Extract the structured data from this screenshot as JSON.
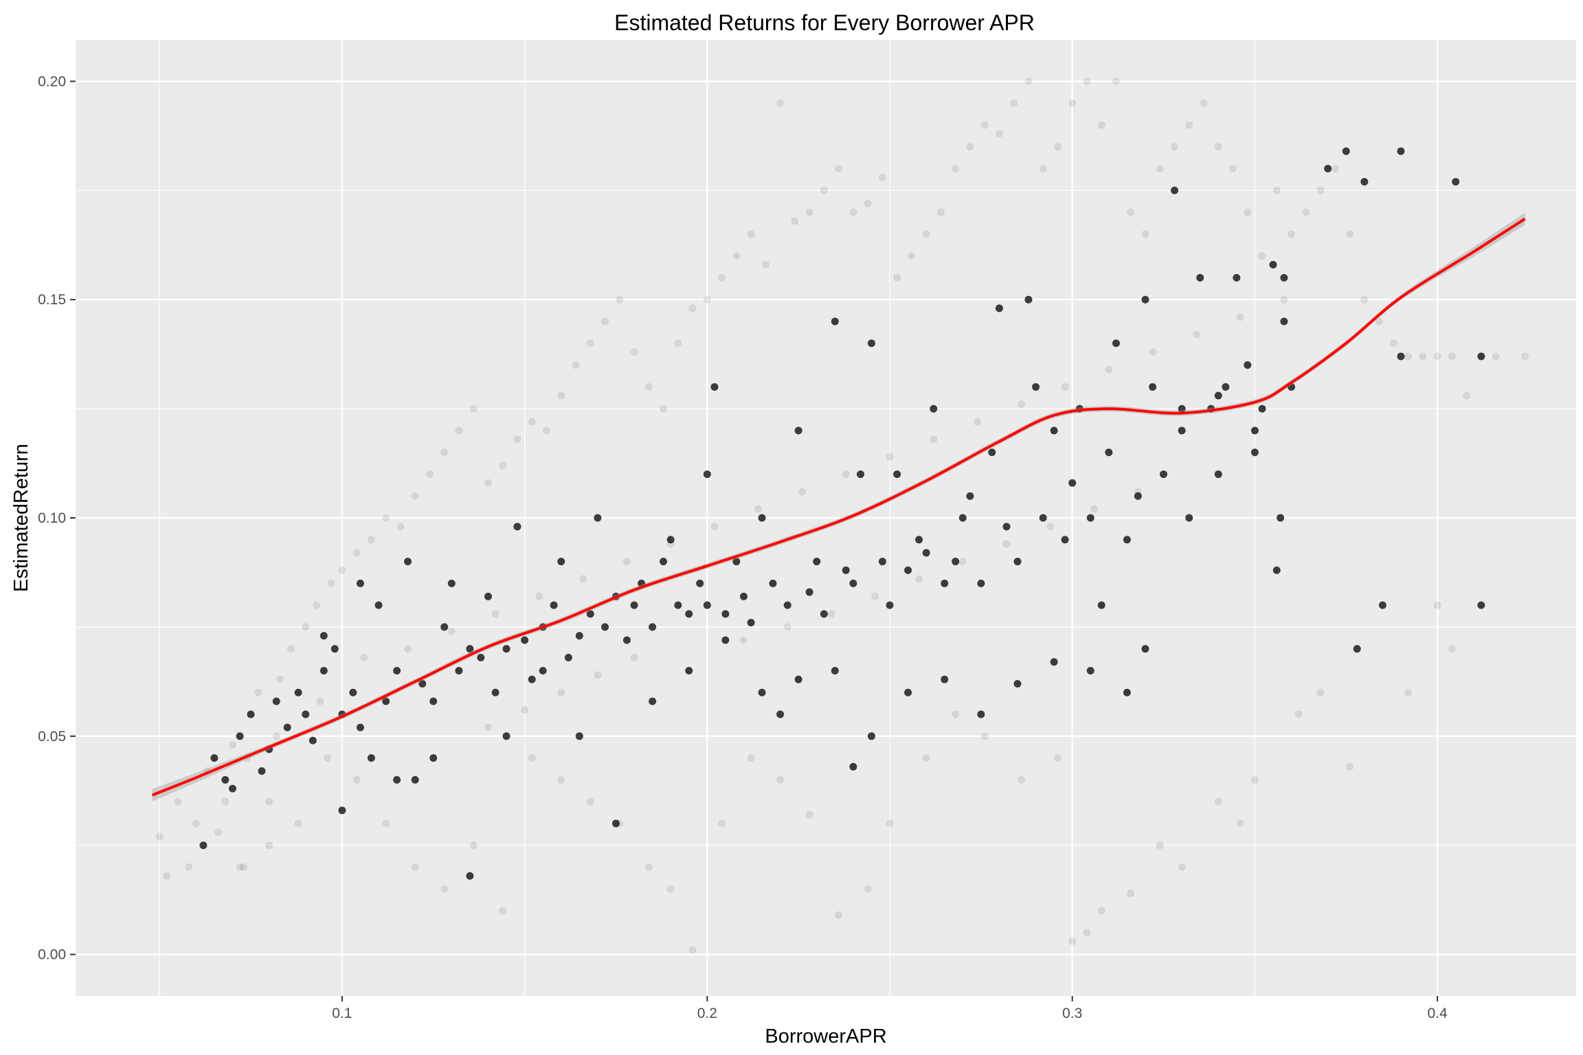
{
  "chart_data": {
    "type": "scatter",
    "title": "Estimated Returns for Every Borrower APR",
    "xlabel": "BorrowerAPR",
    "ylabel": "EstimatedReturn",
    "xlim": [
      0.027,
      0.438
    ],
    "ylim": [
      -0.0095,
      0.2095
    ],
    "x_ticks": [
      0.1,
      0.2,
      0.3,
      0.4
    ],
    "x_tick_labels": [
      "0.1",
      "0.2",
      "0.3",
      "0.4"
    ],
    "y_ticks": [
      0.0,
      0.05,
      0.1,
      0.15,
      0.2
    ],
    "y_tick_labels": [
      "0.00",
      "0.05",
      "0.10",
      "0.15",
      "0.20"
    ],
    "grid": true,
    "point_color": "#000000",
    "point_alpha_note": "semi-transparent black points",
    "smooth_color": "#ff0000",
    "smooth_band_color": "#999999",
    "panel_background": "#ebebeb",
    "smooth_line": {
      "x": [
        0.048,
        0.06,
        0.08,
        0.1,
        0.12,
        0.14,
        0.16,
        0.18,
        0.2,
        0.22,
        0.24,
        0.26,
        0.28,
        0.295,
        0.31,
        0.33,
        0.35,
        0.36,
        0.375,
        0.39,
        0.41,
        0.424
      ],
      "y": [
        0.0365,
        0.0405,
        0.0475,
        0.0545,
        0.0625,
        0.0705,
        0.0765,
        0.0835,
        0.089,
        0.0945,
        0.1005,
        0.1085,
        0.1175,
        0.1235,
        0.125,
        0.124,
        0.1265,
        0.131,
        0.14,
        0.1505,
        0.161,
        0.1685
      ]
    },
    "points": [
      [
        0.062,
        0.025
      ],
      [
        0.065,
        0.045
      ],
      [
        0.068,
        0.04
      ],
      [
        0.07,
        0.038
      ],
      [
        0.072,
        0.05
      ],
      [
        0.075,
        0.055
      ],
      [
        0.078,
        0.042
      ],
      [
        0.08,
        0.047
      ],
      [
        0.082,
        0.058
      ],
      [
        0.085,
        0.052
      ],
      [
        0.088,
        0.06
      ],
      [
        0.09,
        0.055
      ],
      [
        0.092,
        0.049
      ],
      [
        0.095,
        0.065
      ],
      [
        0.098,
        0.07
      ],
      [
        0.1,
        0.033
      ],
      [
        0.1,
        0.055
      ],
      [
        0.103,
        0.06
      ],
      [
        0.105,
        0.052
      ],
      [
        0.108,
        0.045
      ],
      [
        0.11,
        0.08
      ],
      [
        0.112,
        0.058
      ],
      [
        0.115,
        0.065
      ],
      [
        0.118,
        0.09
      ],
      [
        0.12,
        0.04
      ],
      [
        0.122,
        0.062
      ],
      [
        0.125,
        0.058
      ],
      [
        0.128,
        0.075
      ],
      [
        0.13,
        0.085
      ],
      [
        0.132,
        0.065
      ],
      [
        0.135,
        0.07
      ],
      [
        0.138,
        0.068
      ],
      [
        0.14,
        0.082
      ],
      [
        0.142,
        0.06
      ],
      [
        0.145,
        0.07
      ],
      [
        0.148,
        0.098
      ],
      [
        0.15,
        0.072
      ],
      [
        0.152,
        0.063
      ],
      [
        0.155,
        0.075
      ],
      [
        0.158,
        0.08
      ],
      [
        0.16,
        0.09
      ],
      [
        0.162,
        0.068
      ],
      [
        0.165,
        0.073
      ],
      [
        0.168,
        0.078
      ],
      [
        0.17,
        0.1
      ],
      [
        0.172,
        0.075
      ],
      [
        0.175,
        0.082
      ],
      [
        0.178,
        0.072
      ],
      [
        0.18,
        0.08
      ],
      [
        0.182,
        0.085
      ],
      [
        0.185,
        0.075
      ],
      [
        0.188,
        0.09
      ],
      [
        0.19,
        0.095
      ],
      [
        0.192,
        0.08
      ],
      [
        0.195,
        0.078
      ],
      [
        0.198,
        0.085
      ],
      [
        0.2,
        0.11
      ],
      [
        0.2,
        0.08
      ],
      [
        0.202,
        0.13
      ],
      [
        0.205,
        0.078
      ],
      [
        0.208,
        0.09
      ],
      [
        0.21,
        0.082
      ],
      [
        0.212,
        0.076
      ],
      [
        0.215,
        0.1
      ],
      [
        0.218,
        0.085
      ],
      [
        0.22,
        0.055
      ],
      [
        0.222,
        0.08
      ],
      [
        0.225,
        0.12
      ],
      [
        0.228,
        0.083
      ],
      [
        0.23,
        0.09
      ],
      [
        0.232,
        0.078
      ],
      [
        0.235,
        0.145
      ],
      [
        0.238,
        0.088
      ],
      [
        0.24,
        0.085
      ],
      [
        0.242,
        0.11
      ],
      [
        0.245,
        0.14
      ],
      [
        0.248,
        0.09
      ],
      [
        0.25,
        0.08
      ],
      [
        0.252,
        0.11
      ],
      [
        0.255,
        0.088
      ],
      [
        0.258,
        0.095
      ],
      [
        0.26,
        0.092
      ],
      [
        0.262,
        0.125
      ],
      [
        0.265,
        0.085
      ],
      [
        0.268,
        0.09
      ],
      [
        0.27,
        0.1
      ],
      [
        0.272,
        0.105
      ],
      [
        0.275,
        0.085
      ],
      [
        0.278,
        0.115
      ],
      [
        0.28,
        0.148
      ],
      [
        0.282,
        0.098
      ],
      [
        0.285,
        0.09
      ],
      [
        0.288,
        0.15
      ],
      [
        0.29,
        0.13
      ],
      [
        0.292,
        0.1
      ],
      [
        0.295,
        0.12
      ],
      [
        0.298,
        0.095
      ],
      [
        0.3,
        0.108
      ],
      [
        0.302,
        0.125
      ],
      [
        0.305,
        0.1
      ],
      [
        0.308,
        0.08
      ],
      [
        0.31,
        0.115
      ],
      [
        0.312,
        0.14
      ],
      [
        0.315,
        0.095
      ],
      [
        0.318,
        0.105
      ],
      [
        0.32,
        0.15
      ],
      [
        0.322,
        0.13
      ],
      [
        0.325,
        0.11
      ],
      [
        0.328,
        0.175
      ],
      [
        0.33,
        0.12
      ],
      [
        0.332,
        0.1
      ],
      [
        0.335,
        0.155
      ],
      [
        0.338,
        0.125
      ],
      [
        0.34,
        0.11
      ],
      [
        0.342,
        0.13
      ],
      [
        0.345,
        0.155
      ],
      [
        0.348,
        0.135
      ],
      [
        0.35,
        0.115
      ],
      [
        0.352,
        0.125
      ],
      [
        0.355,
        0.158
      ],
      [
        0.357,
        0.1
      ],
      [
        0.358,
        0.145
      ],
      [
        0.375,
        0.184
      ],
      [
        0.38,
        0.177
      ],
      [
        0.385,
        0.08
      ],
      [
        0.39,
        0.184
      ],
      [
        0.39,
        0.137
      ],
      [
        0.412,
        0.137
      ],
      [
        0.412,
        0.08
      ],
      [
        0.405,
        0.177
      ],
      [
        0.378,
        0.07
      ],
      [
        0.095,
        0.073
      ],
      [
        0.105,
        0.085
      ],
      [
        0.115,
        0.04
      ],
      [
        0.125,
        0.045
      ],
      [
        0.135,
        0.018
      ],
      [
        0.145,
        0.05
      ],
      [
        0.155,
        0.065
      ],
      [
        0.165,
        0.05
      ],
      [
        0.175,
        0.03
      ],
      [
        0.185,
        0.058
      ],
      [
        0.195,
        0.065
      ],
      [
        0.205,
        0.072
      ],
      [
        0.215,
        0.06
      ],
      [
        0.225,
        0.063
      ],
      [
        0.235,
        0.065
      ],
      [
        0.245,
        0.05
      ],
      [
        0.255,
        0.06
      ],
      [
        0.265,
        0.063
      ],
      [
        0.275,
        0.055
      ],
      [
        0.285,
        0.062
      ],
      [
        0.295,
        0.067
      ],
      [
        0.305,
        0.065
      ],
      [
        0.315,
        0.06
      ],
      [
        0.32,
        0.07
      ],
      [
        0.33,
        0.125
      ],
      [
        0.34,
        0.128
      ],
      [
        0.35,
        0.12
      ],
      [
        0.356,
        0.088
      ],
      [
        0.358,
        0.155
      ],
      [
        0.36,
        0.13
      ],
      [
        0.37,
        0.18
      ],
      [
        0.24,
        0.043
      ]
    ],
    "faint_points": [
      [
        0.05,
        0.027
      ],
      [
        0.052,
        0.018
      ],
      [
        0.055,
        0.035
      ],
      [
        0.058,
        0.02
      ],
      [
        0.06,
        0.03
      ],
      [
        0.063,
        0.042
      ],
      [
        0.066,
        0.028
      ],
      [
        0.07,
        0.048
      ],
      [
        0.073,
        0.02
      ],
      [
        0.077,
        0.06
      ],
      [
        0.08,
        0.035
      ],
      [
        0.083,
        0.063
      ],
      [
        0.086,
        0.07
      ],
      [
        0.09,
        0.075
      ],
      [
        0.093,
        0.08
      ],
      [
        0.097,
        0.085
      ],
      [
        0.1,
        0.088
      ],
      [
        0.104,
        0.092
      ],
      [
        0.108,
        0.095
      ],
      [
        0.112,
        0.1
      ],
      [
        0.116,
        0.098
      ],
      [
        0.12,
        0.105
      ],
      [
        0.124,
        0.11
      ],
      [
        0.128,
        0.115
      ],
      [
        0.132,
        0.12
      ],
      [
        0.136,
        0.125
      ],
      [
        0.14,
        0.108
      ],
      [
        0.144,
        0.112
      ],
      [
        0.148,
        0.118
      ],
      [
        0.152,
        0.122
      ],
      [
        0.156,
        0.12
      ],
      [
        0.16,
        0.128
      ],
      [
        0.164,
        0.135
      ],
      [
        0.168,
        0.14
      ],
      [
        0.172,
        0.145
      ],
      [
        0.176,
        0.15
      ],
      [
        0.18,
        0.138
      ],
      [
        0.184,
        0.13
      ],
      [
        0.188,
        0.125
      ],
      [
        0.192,
        0.14
      ],
      [
        0.196,
        0.148
      ],
      [
        0.2,
        0.15
      ],
      [
        0.204,
        0.155
      ],
      [
        0.208,
        0.16
      ],
      [
        0.212,
        0.165
      ],
      [
        0.216,
        0.158
      ],
      [
        0.22,
        0.195
      ],
      [
        0.224,
        0.168
      ],
      [
        0.228,
        0.17
      ],
      [
        0.232,
        0.175
      ],
      [
        0.236,
        0.18
      ],
      [
        0.24,
        0.17
      ],
      [
        0.244,
        0.172
      ],
      [
        0.248,
        0.178
      ],
      [
        0.252,
        0.155
      ],
      [
        0.256,
        0.16
      ],
      [
        0.26,
        0.165
      ],
      [
        0.264,
        0.17
      ],
      [
        0.268,
        0.18
      ],
      [
        0.272,
        0.185
      ],
      [
        0.276,
        0.19
      ],
      [
        0.28,
        0.188
      ],
      [
        0.284,
        0.195
      ],
      [
        0.288,
        0.2
      ],
      [
        0.292,
        0.18
      ],
      [
        0.296,
        0.185
      ],
      [
        0.3,
        0.195
      ],
      [
        0.304,
        0.2
      ],
      [
        0.308,
        0.19
      ],
      [
        0.312,
        0.2
      ],
      [
        0.316,
        0.17
      ],
      [
        0.32,
        0.165
      ],
      [
        0.324,
        0.18
      ],
      [
        0.328,
        0.185
      ],
      [
        0.332,
        0.19
      ],
      [
        0.336,
        0.195
      ],
      [
        0.34,
        0.185
      ],
      [
        0.344,
        0.18
      ],
      [
        0.348,
        0.17
      ],
      [
        0.352,
        0.16
      ],
      [
        0.356,
        0.175
      ],
      [
        0.36,
        0.165
      ],
      [
        0.364,
        0.17
      ],
      [
        0.368,
        0.175
      ],
      [
        0.372,
        0.18
      ],
      [
        0.376,
        0.165
      ],
      [
        0.38,
        0.15
      ],
      [
        0.384,
        0.145
      ],
      [
        0.388,
        0.14
      ],
      [
        0.392,
        0.137
      ],
      [
        0.396,
        0.137
      ],
      [
        0.4,
        0.137
      ],
      [
        0.404,
        0.137
      ],
      [
        0.408,
        0.128
      ],
      [
        0.416,
        0.137
      ],
      [
        0.424,
        0.137
      ],
      [
        0.4,
        0.08
      ],
      [
        0.404,
        0.07
      ],
      [
        0.392,
        0.06
      ],
      [
        0.376,
        0.043
      ],
      [
        0.368,
        0.06
      ],
      [
        0.362,
        0.055
      ],
      [
        0.35,
        0.04
      ],
      [
        0.346,
        0.03
      ],
      [
        0.34,
        0.035
      ],
      [
        0.33,
        0.02
      ],
      [
        0.324,
        0.025
      ],
      [
        0.316,
        0.014
      ],
      [
        0.308,
        0.01
      ],
      [
        0.3,
        0.003
      ],
      [
        0.304,
        0.005
      ],
      [
        0.296,
        0.045
      ],
      [
        0.286,
        0.04
      ],
      [
        0.276,
        0.05
      ],
      [
        0.268,
        0.055
      ],
      [
        0.26,
        0.045
      ],
      [
        0.25,
        0.03
      ],
      [
        0.244,
        0.015
      ],
      [
        0.236,
        0.009
      ],
      [
        0.228,
        0.032
      ],
      [
        0.22,
        0.04
      ],
      [
        0.212,
        0.045
      ],
      [
        0.204,
        0.03
      ],
      [
        0.196,
        0.001
      ],
      [
        0.19,
        0.015
      ],
      [
        0.184,
        0.02
      ],
      [
        0.176,
        0.03
      ],
      [
        0.168,
        0.035
      ],
      [
        0.16,
        0.04
      ],
      [
        0.152,
        0.045
      ],
      [
        0.144,
        0.01
      ],
      [
        0.136,
        0.025
      ],
      [
        0.128,
        0.015
      ],
      [
        0.12,
        0.02
      ],
      [
        0.112,
        0.03
      ],
      [
        0.104,
        0.04
      ],
      [
        0.096,
        0.045
      ],
      [
        0.088,
        0.03
      ],
      [
        0.08,
        0.025
      ],
      [
        0.072,
        0.02
      ],
      [
        0.068,
        0.035
      ],
      [
        0.074,
        0.045
      ],
      [
        0.082,
        0.05
      ],
      [
        0.094,
        0.058
      ],
      [
        0.106,
        0.068
      ],
      [
        0.118,
        0.07
      ],
      [
        0.13,
        0.074
      ],
      [
        0.142,
        0.078
      ],
      [
        0.154,
        0.082
      ],
      [
        0.166,
        0.086
      ],
      [
        0.178,
        0.09
      ],
      [
        0.19,
        0.094
      ],
      [
        0.202,
        0.098
      ],
      [
        0.214,
        0.102
      ],
      [
        0.226,
        0.106
      ],
      [
        0.238,
        0.11
      ],
      [
        0.25,
        0.114
      ],
      [
        0.262,
        0.118
      ],
      [
        0.274,
        0.122
      ],
      [
        0.286,
        0.126
      ],
      [
        0.298,
        0.13
      ],
      [
        0.31,
        0.134
      ],
      [
        0.322,
        0.138
      ],
      [
        0.334,
        0.142
      ],
      [
        0.346,
        0.146
      ],
      [
        0.358,
        0.15
      ],
      [
        0.21,
        0.072
      ],
      [
        0.222,
        0.075
      ],
      [
        0.234,
        0.078
      ],
      [
        0.246,
        0.082
      ],
      [
        0.258,
        0.086
      ],
      [
        0.27,
        0.09
      ],
      [
        0.282,
        0.094
      ],
      [
        0.294,
        0.098
      ],
      [
        0.306,
        0.102
      ],
      [
        0.318,
        0.106
      ],
      [
        0.18,
        0.068
      ],
      [
        0.17,
        0.064
      ],
      [
        0.16,
        0.06
      ],
      [
        0.15,
        0.056
      ],
      [
        0.14,
        0.052
      ]
    ]
  }
}
